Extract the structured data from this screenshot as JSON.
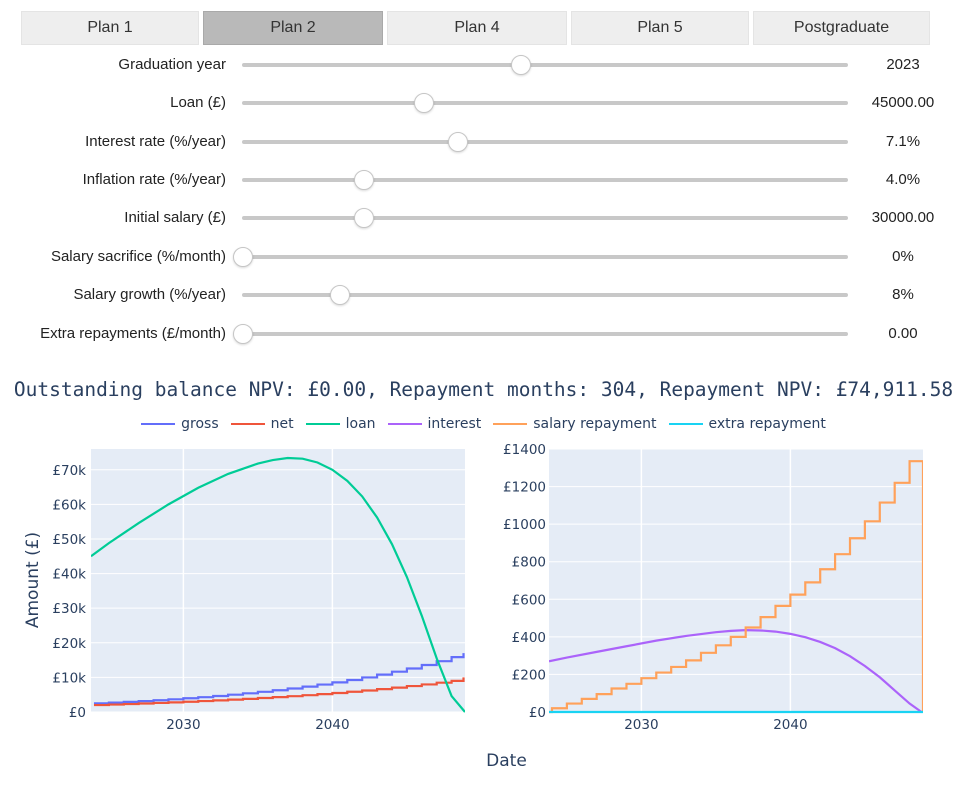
{
  "tabs": [
    {
      "label": "Plan 1",
      "active": false
    },
    {
      "label": "Plan 2",
      "active": true
    },
    {
      "label": "Plan 4",
      "active": false
    },
    {
      "label": "Plan 5",
      "active": false
    },
    {
      "label": "Postgraduate",
      "active": false
    }
  ],
  "sliders": [
    {
      "label": "Graduation year",
      "value": "2023",
      "fraction": 0.459
    },
    {
      "label": "Loan (£)",
      "value": "45000.00",
      "fraction": 0.299
    },
    {
      "label": "Interest rate (%/year)",
      "value": "7.1%",
      "fraction": 0.355
    },
    {
      "label": "Inflation rate (%/year)",
      "value": "4.0%",
      "fraction": 0.2
    },
    {
      "label": "Initial salary (£)",
      "value": "30000.00",
      "fraction": 0.2
    },
    {
      "label": "Salary sacrifice (%/month)",
      "value": "0%",
      "fraction": 0.0
    },
    {
      "label": "Salary growth (%/year)",
      "value": "8%",
      "fraction": 0.16
    },
    {
      "label": "Extra repayments (£/month)",
      "value": "0.00",
      "fraction": 0.0
    }
  ],
  "summary": "Outstanding balance NPV: £0.00, Repayment months: 304, Repayment NPV: £74,911.58",
  "legend": [
    {
      "name": "gross",
      "color": "#636efa"
    },
    {
      "name": "net",
      "color": "#ef553b"
    },
    {
      "name": "loan",
      "color": "#00cc96"
    },
    {
      "name": "interest",
      "color": "#ab63fa"
    },
    {
      "name": "salary repayment",
      "color": "#ffa15a"
    },
    {
      "name": "extra repayment",
      "color": "#19d3f3"
    }
  ],
  "chart_data": [
    {
      "type": "line",
      "ylabel": "Amount (£)",
      "xlim": [
        2023.8,
        2048.9
      ],
      "ylim": [
        0,
        76000
      ],
      "xticks": [
        2030,
        2040
      ],
      "yticks": [
        0,
        10000,
        20000,
        30000,
        40000,
        50000,
        60000,
        70000
      ],
      "ytick_labels": [
        "£0",
        "£10k",
        "£20k",
        "£30k",
        "£40k",
        "£50k",
        "£60k",
        "£70k"
      ],
      "series": [
        {
          "name": "gross",
          "color": "#636efa",
          "step": true,
          "x": [
            2024,
            2025,
            2026,
            2027,
            2028,
            2029,
            2030,
            2031,
            2032,
            2033,
            2034,
            2035,
            2036,
            2037,
            2038,
            2039,
            2040,
            2041,
            2042,
            2043,
            2044,
            2045,
            2046,
            2047,
            2048,
            2048.8
          ],
          "y": [
            2500,
            2700,
            2920,
            3150,
            3400,
            3670,
            3970,
            4280,
            4630,
            5000,
            5400,
            5830,
            6290,
            6800,
            7340,
            7930,
            8560,
            9250,
            9990,
            10790,
            11650,
            12580,
            13590,
            14680,
            15850,
            17000
          ]
        },
        {
          "name": "net",
          "color": "#ef553b",
          "step": true,
          "x": [
            2024,
            2025,
            2026,
            2027,
            2028,
            2029,
            2030,
            2031,
            2032,
            2033,
            2034,
            2035,
            2036,
            2037,
            2038,
            2039,
            2040,
            2041,
            2042,
            2043,
            2044,
            2045,
            2046,
            2047,
            2048,
            2048.8
          ],
          "y": [
            2000,
            2150,
            2300,
            2450,
            2620,
            2790,
            2970,
            3160,
            3360,
            3570,
            3800,
            4040,
            4300,
            4570,
            4860,
            5170,
            5500,
            5850,
            6220,
            6620,
            7040,
            7490,
            7960,
            8470,
            9000,
            10000
          ]
        },
        {
          "name": "loan",
          "color": "#00cc96",
          "step": false,
          "x": [
            2023.8,
            2025,
            2027,
            2029,
            2031,
            2033,
            2035,
            2036,
            2037,
            2038,
            2039,
            2040,
            2041,
            2042,
            2043,
            2044,
            2045,
            2046,
            2047,
            2048,
            2048.9
          ],
          "y": [
            45000,
            48800,
            54600,
            60000,
            64800,
            68800,
            71800,
            72800,
            73400,
            73200,
            72100,
            70000,
            66800,
            62300,
            56200,
            48500,
            39000,
            27800,
            15500,
            4600,
            0
          ]
        }
      ]
    },
    {
      "type": "line",
      "xlim": [
        2023.8,
        2048.9
      ],
      "ylim": [
        0,
        1400
      ],
      "xticks": [
        2030,
        2040
      ],
      "yticks": [
        0,
        200,
        400,
        600,
        800,
        1000,
        1200,
        1400
      ],
      "ytick_labels": [
        "£0",
        "£200",
        "£400",
        "£600",
        "£800",
        "£1000",
        "£1200",
        "£1400"
      ],
      "series": [
        {
          "name": "interest",
          "color": "#ab63fa",
          "step": false,
          "x": [
            2023.8,
            2025,
            2027,
            2029,
            2031,
            2033,
            2035,
            2036,
            2037,
            2038,
            2039,
            2040,
            2041,
            2042,
            2043,
            2044,
            2045,
            2046,
            2047,
            2048,
            2048.8
          ],
          "y": [
            270,
            290,
            320,
            350,
            380,
            405,
            425,
            432,
            436,
            434,
            428,
            416,
            398,
            373,
            340,
            297,
            245,
            185,
            115,
            45,
            0
          ]
        },
        {
          "name": "salary repayment",
          "color": "#ffa15a",
          "step": true,
          "x": [
            2023.8,
            2024,
            2025,
            2026,
            2027,
            2028,
            2029,
            2030,
            2031,
            2032,
            2033,
            2034,
            2035,
            2036,
            2037,
            2038,
            2039,
            2040,
            2041,
            2042,
            2043,
            2044,
            2045,
            2046,
            2047,
            2048,
            2048.8,
            2048.9
          ],
          "y": [
            0,
            20,
            45,
            70,
            95,
            125,
            150,
            180,
            210,
            240,
            275,
            315,
            355,
            400,
            450,
            505,
            565,
            625,
            690,
            760,
            840,
            925,
            1015,
            1115,
            1220,
            1335,
            1335,
            0
          ]
        },
        {
          "name": "extra repayment",
          "color": "#19d3f3",
          "step": false,
          "x": [
            2023.8,
            2048.9
          ],
          "y": [
            0,
            0
          ]
        }
      ]
    }
  ],
  "x_axis_label": "Date"
}
